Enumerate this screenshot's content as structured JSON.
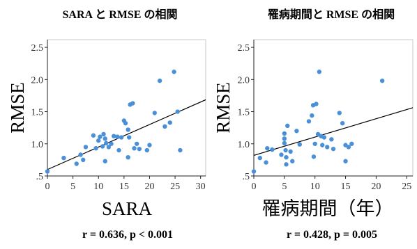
{
  "chart_data": [
    {
      "type": "scatter",
      "title": "SARA と RMSE の相関",
      "xlabel": "SARA",
      "ylabel": "RMSE",
      "xticks": [
        "0",
        "5",
        "10",
        "15",
        "20",
        "25",
        "30"
      ],
      "yticks": [
        ".5",
        "1.0",
        "1.5",
        "2.0",
        "2.5"
      ],
      "xlim": [
        0,
        31
      ],
      "ylim": [
        0.5,
        2.62
      ],
      "grid": false,
      "point_color": "#4a90d9",
      "fit_line": {
        "x": [
          0,
          32
        ],
        "y": [
          0.6,
          1.72
        ]
      },
      "stats": "r = 0.636, p < 0.001",
      "points": [
        {
          "x": 0,
          "y": 0.57
        },
        {
          "x": 3.2,
          "y": 0.78
        },
        {
          "x": 5.7,
          "y": 0.69
        },
        {
          "x": 6.5,
          "y": 0.83
        },
        {
          "x": 7,
          "y": 0.75
        },
        {
          "x": 7.5,
          "y": 0.95
        },
        {
          "x": 9,
          "y": 1.13
        },
        {
          "x": 9.5,
          "y": 0.93
        },
        {
          "x": 10,
          "y": 1.05
        },
        {
          "x": 10.3,
          "y": 1.11
        },
        {
          "x": 10.8,
          "y": 0.96
        },
        {
          "x": 11,
          "y": 1.15
        },
        {
          "x": 11.3,
          "y": 1.08
        },
        {
          "x": 11.3,
          "y": 0.73
        },
        {
          "x": 11.5,
          "y": 1.01
        },
        {
          "x": 12,
          "y": 0.95
        },
        {
          "x": 12.5,
          "y": 1.0
        },
        {
          "x": 13,
          "y": 1.12
        },
        {
          "x": 13.7,
          "y": 1.11
        },
        {
          "x": 14,
          "y": 0.9
        },
        {
          "x": 14.5,
          "y": 1.1
        },
        {
          "x": 15,
          "y": 1.36
        },
        {
          "x": 15.3,
          "y": 1.32
        },
        {
          "x": 15.8,
          "y": 1.22
        },
        {
          "x": 15.8,
          "y": 0.79
        },
        {
          "x": 16,
          "y": 1.1
        },
        {
          "x": 16.2,
          "y": 1.61
        },
        {
          "x": 16.7,
          "y": 1.63
        },
        {
          "x": 17,
          "y": 0.93
        },
        {
          "x": 17.5,
          "y": 1.0
        },
        {
          "x": 18,
          "y": 0.92
        },
        {
          "x": 19.5,
          "y": 0.9
        },
        {
          "x": 20,
          "y": 0.98
        },
        {
          "x": 21,
          "y": 1.48
        },
        {
          "x": 22,
          "y": 1.98
        },
        {
          "x": 23,
          "y": 1.27
        },
        {
          "x": 24,
          "y": 1.33
        },
        {
          "x": 24.8,
          "y": 2.12
        },
        {
          "x": 25.5,
          "y": 1.5
        },
        {
          "x": 26,
          "y": 0.9
        }
      ]
    },
    {
      "type": "scatter",
      "title": "罹病期間と RMSE の相関",
      "xlabel": "罹病期間（年）",
      "ylabel": "RMSE",
      "xticks": [
        "0",
        "5",
        "10",
        "15",
        "20",
        "25"
      ],
      "yticks": [
        ".5",
        "1.0",
        "1.5",
        "2.0",
        "2.5"
      ],
      "xlim": [
        0,
        26
      ],
      "ylim": [
        0.5,
        2.62
      ],
      "grid": false,
      "point_color": "#4a90d9",
      "fit_line": {
        "x": [
          0,
          27
        ],
        "y": [
          0.82,
          1.59
        ]
      },
      "stats": "r = 0.428, p = 0.005",
      "points": [
        {
          "x": 0,
          "y": 0.57
        },
        {
          "x": 1,
          "y": 0.78
        },
        {
          "x": 2,
          "y": 0.71
        },
        {
          "x": 2.2,
          "y": 0.93
        },
        {
          "x": 3,
          "y": 0.91
        },
        {
          "x": 4.5,
          "y": 0.83
        },
        {
          "x": 5,
          "y": 1.16
        },
        {
          "x": 5,
          "y": 1.08
        },
        {
          "x": 5,
          "y": 1.01
        },
        {
          "x": 5.2,
          "y": 0.9
        },
        {
          "x": 5.3,
          "y": 0.79
        },
        {
          "x": 5.3,
          "y": 0.68
        },
        {
          "x": 5.5,
          "y": 1.28
        },
        {
          "x": 6,
          "y": 0.88
        },
        {
          "x": 6.3,
          "y": 0.73
        },
        {
          "x": 7,
          "y": 1.2
        },
        {
          "x": 7.5,
          "y": 0.99
        },
        {
          "x": 9,
          "y": 1.35
        },
        {
          "x": 9.5,
          "y": 1.44
        },
        {
          "x": 9.7,
          "y": 1.6
        },
        {
          "x": 9.8,
          "y": 0.8
        },
        {
          "x": 10,
          "y": 1.0
        },
        {
          "x": 10.2,
          "y": 1.62
        },
        {
          "x": 10.5,
          "y": 1.15
        },
        {
          "x": 10.7,
          "y": 2.12
        },
        {
          "x": 11,
          "y": 1.12
        },
        {
          "x": 11.2,
          "y": 0.98
        },
        {
          "x": 11.5,
          "y": 1.1
        },
        {
          "x": 12,
          "y": 0.95
        },
        {
          "x": 12.7,
          "y": 1.07
        },
        {
          "x": 13,
          "y": 0.92
        },
        {
          "x": 14,
          "y": 1.48
        },
        {
          "x": 14.5,
          "y": 1.32
        },
        {
          "x": 15,
          "y": 0.98
        },
        {
          "x": 15,
          "y": 0.73
        },
        {
          "x": 15.5,
          "y": 0.95
        },
        {
          "x": 16,
          "y": 1.0
        },
        {
          "x": 21,
          "y": 1.98
        }
      ]
    }
  ]
}
